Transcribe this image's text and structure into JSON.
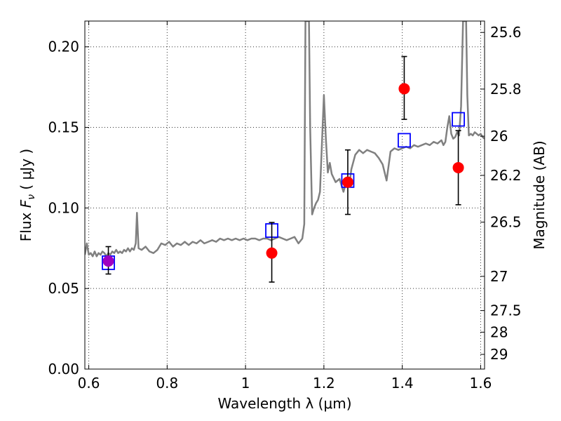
{
  "chart_data": {
    "type": "scatter",
    "xlabel": "Wavelength  λ (μm)",
    "ylabel": "Flux  F_ν  ( μJy )",
    "ylabel_parts": {
      "prefix": "Flux  ",
      "var": "F",
      "sub": "ν",
      "suffix": "  ( μJy )"
    },
    "y2label": "Magnitude (AB)",
    "xlim": [
      0.59,
      1.61
    ],
    "ylim": [
      0.0,
      0.216
    ],
    "grid": true,
    "x_ticks": [
      0.6,
      0.8,
      1.0,
      1.2,
      1.4,
      1.6
    ],
    "x_tick_labels": [
      "0.6",
      "0.8",
      "1",
      "1.2",
      "1.4",
      "1.6"
    ],
    "y_ticks": [
      0.0,
      0.05,
      0.1,
      0.15,
      0.2
    ],
    "y_tick_labels": [
      "0.00",
      "0.05",
      "0.10",
      "0.15",
      "0.20"
    ],
    "y2_ticks": [
      {
        "mag": 25.6,
        "label": "25.6"
      },
      {
        "mag": 25.8,
        "label": "25.8"
      },
      {
        "mag": 26.0,
        "label": "26"
      },
      {
        "mag": 26.2,
        "label": "26.2"
      },
      {
        "mag": 26.5,
        "label": "26.5"
      },
      {
        "mag": 27.0,
        "label": "27"
      },
      {
        "mag": 27.5,
        "label": "27.5"
      },
      {
        "mag": 28.0,
        "label": "28"
      },
      {
        "mag": 29.0,
        "label": "29"
      }
    ],
    "series": [
      {
        "type": "line",
        "color": "#808080",
        "points": [
          [
            0.59,
            0.071
          ],
          [
            0.595,
            0.078
          ],
          [
            0.6,
            0.071
          ],
          [
            0.605,
            0.072
          ],
          [
            0.61,
            0.07
          ],
          [
            0.615,
            0.073
          ],
          [
            0.62,
            0.07
          ],
          [
            0.625,
            0.072
          ],
          [
            0.63,
            0.071
          ],
          [
            0.635,
            0.073
          ],
          [
            0.64,
            0.072
          ],
          [
            0.645,
            0.07
          ],
          [
            0.65,
            0.072
          ],
          [
            0.655,
            0.071
          ],
          [
            0.66,
            0.073
          ],
          [
            0.665,
            0.072
          ],
          [
            0.67,
            0.074
          ],
          [
            0.675,
            0.072
          ],
          [
            0.68,
            0.073
          ],
          [
            0.685,
            0.072
          ],
          [
            0.69,
            0.074
          ],
          [
            0.695,
            0.073
          ],
          [
            0.7,
            0.075
          ],
          [
            0.705,
            0.073
          ],
          [
            0.71,
            0.075
          ],
          [
            0.715,
            0.074
          ],
          [
            0.72,
            0.078
          ],
          [
            0.723,
            0.097
          ],
          [
            0.727,
            0.075
          ],
          [
            0.735,
            0.074
          ],
          [
            0.745,
            0.076
          ],
          [
            0.755,
            0.073
          ],
          [
            0.765,
            0.072
          ],
          [
            0.775,
            0.074
          ],
          [
            0.785,
            0.078
          ],
          [
            0.795,
            0.077
          ],
          [
            0.805,
            0.079
          ],
          [
            0.815,
            0.076
          ],
          [
            0.825,
            0.078
          ],
          [
            0.835,
            0.077
          ],
          [
            0.845,
            0.079
          ],
          [
            0.855,
            0.077
          ],
          [
            0.865,
            0.079
          ],
          [
            0.875,
            0.078
          ],
          [
            0.885,
            0.08
          ],
          [
            0.895,
            0.078
          ],
          [
            0.905,
            0.079
          ],
          [
            0.915,
            0.08
          ],
          [
            0.925,
            0.079
          ],
          [
            0.935,
            0.081
          ],
          [
            0.945,
            0.08
          ],
          [
            0.955,
            0.081
          ],
          [
            0.965,
            0.08
          ],
          [
            0.975,
            0.081
          ],
          [
            0.985,
            0.08
          ],
          [
            0.995,
            0.081
          ],
          [
            1.005,
            0.08
          ],
          [
            1.015,
            0.081
          ],
          [
            1.025,
            0.081
          ],
          [
            1.035,
            0.08
          ],
          [
            1.045,
            0.081
          ],
          [
            1.055,
            0.081
          ],
          [
            1.065,
            0.08
          ],
          [
            1.075,
            0.081
          ],
          [
            1.085,
            0.082
          ],
          [
            1.095,
            0.081
          ],
          [
            1.105,
            0.08
          ],
          [
            1.115,
            0.081
          ],
          [
            1.125,
            0.082
          ],
          [
            1.135,
            0.078
          ],
          [
            1.145,
            0.081
          ],
          [
            1.15,
            0.09
          ],
          [
            1.153,
            0.216
          ],
          [
            1.162,
            0.216
          ],
          [
            1.165,
            0.15
          ],
          [
            1.17,
            0.096
          ],
          [
            1.175,
            0.1
          ],
          [
            1.18,
            0.103
          ],
          [
            1.185,
            0.105
          ],
          [
            1.19,
            0.11
          ],
          [
            1.195,
            0.14
          ],
          [
            1.2,
            0.17
          ],
          [
            1.205,
            0.143
          ],
          [
            1.21,
            0.122
          ],
          [
            1.215,
            0.128
          ],
          [
            1.22,
            0.121
          ],
          [
            1.23,
            0.116
          ],
          [
            1.24,
            0.118
          ],
          [
            1.25,
            0.11
          ],
          [
            1.26,
            0.119
          ],
          [
            1.265,
            0.114
          ],
          [
            1.27,
            0.124
          ],
          [
            1.28,
            0.133
          ],
          [
            1.29,
            0.136
          ],
          [
            1.3,
            0.134
          ],
          [
            1.31,
            0.136
          ],
          [
            1.32,
            0.135
          ],
          [
            1.33,
            0.134
          ],
          [
            1.34,
            0.131
          ],
          [
            1.35,
            0.127
          ],
          [
            1.36,
            0.117
          ],
          [
            1.37,
            0.135
          ],
          [
            1.38,
            0.137
          ],
          [
            1.39,
            0.136
          ],
          [
            1.4,
            0.137
          ],
          [
            1.41,
            0.138
          ],
          [
            1.42,
            0.137
          ],
          [
            1.43,
            0.139
          ],
          [
            1.44,
            0.138
          ],
          [
            1.45,
            0.139
          ],
          [
            1.46,
            0.14
          ],
          [
            1.47,
            0.139
          ],
          [
            1.48,
            0.141
          ],
          [
            1.49,
            0.14
          ],
          [
            1.5,
            0.142
          ],
          [
            1.505,
            0.139
          ],
          [
            1.51,
            0.141
          ],
          [
            1.515,
            0.15
          ],
          [
            1.52,
            0.157
          ],
          [
            1.525,
            0.146
          ],
          [
            1.53,
            0.143
          ],
          [
            1.535,
            0.144
          ],
          [
            1.54,
            0.147
          ],
          [
            1.545,
            0.145
          ],
          [
            1.55,
            0.163
          ],
          [
            1.555,
            0.216
          ],
          [
            1.563,
            0.216
          ],
          [
            1.566,
            0.17
          ],
          [
            1.57,
            0.145
          ],
          [
            1.575,
            0.146
          ],
          [
            1.58,
            0.145
          ],
          [
            1.585,
            0.147
          ],
          [
            1.59,
            0.146
          ],
          [
            1.595,
            0.145
          ],
          [
            1.6,
            0.146
          ],
          [
            1.605,
            0.144
          ],
          [
            1.61,
            0.143
          ]
        ]
      },
      {
        "type": "scatter",
        "marker": "square",
        "color": "#0000ff",
        "points": [
          [
            0.65,
            0.066
          ],
          [
            1.067,
            0.086
          ],
          [
            1.261,
            0.117
          ],
          [
            1.405,
            0.142
          ],
          [
            1.543,
            0.155
          ]
        ]
      },
      {
        "type": "errorbar",
        "marker": "circle",
        "color": "#ff0000",
        "points": [
          {
            "x": 1.067,
            "y": 0.072,
            "lo": 0.054,
            "hi": 0.091
          },
          {
            "x": 1.261,
            "y": 0.116,
            "lo": 0.096,
            "hi": 0.136
          },
          {
            "x": 1.405,
            "y": 0.174,
            "lo": 0.155,
            "hi": 0.194
          },
          {
            "x": 1.543,
            "y": 0.125,
            "lo": 0.102,
            "hi": 0.148
          }
        ]
      },
      {
        "type": "errorbar",
        "marker": "circle",
        "color": "#a000c0",
        "points": [
          {
            "x": 0.65,
            "y": 0.067,
            "lo": 0.059,
            "hi": 0.076
          }
        ]
      }
    ]
  }
}
